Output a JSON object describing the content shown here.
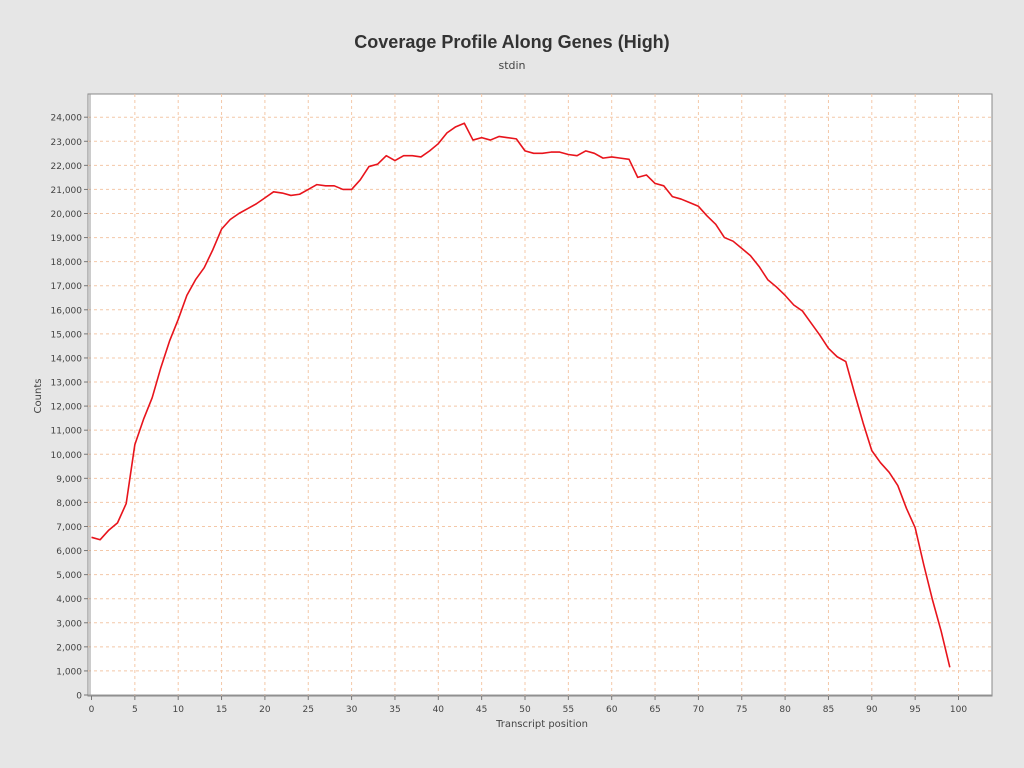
{
  "chart_data": {
    "type": "line",
    "title": "Coverage Profile Along Genes (High)",
    "subtitle": "stdin",
    "xlabel": "Transcript position",
    "ylabel": "Counts",
    "xlim": [
      0,
      104
    ],
    "ylim": [
      0,
      24800
    ],
    "x_ticks": [
      0,
      5,
      10,
      15,
      20,
      25,
      30,
      35,
      40,
      45,
      50,
      55,
      60,
      65,
      70,
      75,
      80,
      85,
      90,
      95,
      100
    ],
    "y_ticks": [
      0,
      1000,
      2000,
      3000,
      4000,
      5000,
      6000,
      7000,
      8000,
      9000,
      10000,
      11000,
      12000,
      13000,
      14000,
      15000,
      16000,
      17000,
      18000,
      19000,
      20000,
      21000,
      22000,
      23000,
      24000
    ],
    "y_tick_labels": [
      "0",
      "1,000",
      "2,000",
      "3,000",
      "4,000",
      "5,000",
      "6,000",
      "7,000",
      "8,000",
      "9,000",
      "10,000",
      "11,000",
      "12,000",
      "13,000",
      "14,000",
      "15,000",
      "16,000",
      "17,000",
      "18,000",
      "19,000",
      "20,000",
      "21,000",
      "22,000",
      "23,000",
      "24,000"
    ],
    "grid": true,
    "series": [
      {
        "color": "#e8141c",
        "x": [
          0,
          1,
          2,
          3,
          4,
          5,
          6,
          7,
          8,
          9,
          10,
          11,
          12,
          13,
          14,
          15,
          16,
          17,
          18,
          19,
          20,
          21,
          22,
          23,
          24,
          25,
          26,
          27,
          28,
          29,
          30,
          31,
          32,
          33,
          34,
          35,
          36,
          37,
          38,
          39,
          40,
          41,
          42,
          43,
          44,
          45,
          46,
          47,
          48,
          49,
          50,
          51,
          52,
          53,
          54,
          55,
          56,
          57,
          58,
          59,
          60,
          61,
          62,
          63,
          64,
          65,
          66,
          67,
          68,
          69,
          70,
          71,
          72,
          73,
          74,
          75,
          76,
          77,
          78,
          79,
          80,
          81,
          82,
          83,
          84,
          85,
          86,
          87,
          88,
          89,
          90,
          91,
          92,
          93,
          94,
          95,
          96,
          97,
          98,
          99
        ],
        "y": [
          6550,
          6450,
          6850,
          7150,
          7950,
          10400,
          11450,
          12350,
          13600,
          14700,
          15600,
          16600,
          17250,
          17750,
          18500,
          19350,
          19750,
          20000,
          20200,
          20400,
          20650,
          20900,
          20850,
          20750,
          20800,
          21000,
          21200,
          21150,
          21150,
          21000,
          21000,
          21400,
          21950,
          22050,
          22400,
          22200,
          22400,
          22400,
          22350,
          22600,
          22900,
          23350,
          23600,
          23750,
          23050,
          23150,
          23050,
          23200,
          23150,
          23100,
          22600,
          22500,
          22500,
          22550,
          22550,
          22450,
          22400,
          22600,
          22500,
          22300,
          22350,
          22300,
          22250,
          21500,
          21600,
          21250,
          21150,
          20700,
          20600,
          20450,
          20300,
          19900,
          19550,
          19000,
          18850,
          18550,
          18250,
          17800,
          17250,
          16950,
          16600,
          16200,
          15950,
          15450,
          14950,
          14400,
          14050,
          13850,
          12550,
          11300,
          10150,
          9650,
          9250,
          8700,
          7750,
          6950,
          5400,
          3950,
          2650,
          1150
        ]
      }
    ]
  }
}
